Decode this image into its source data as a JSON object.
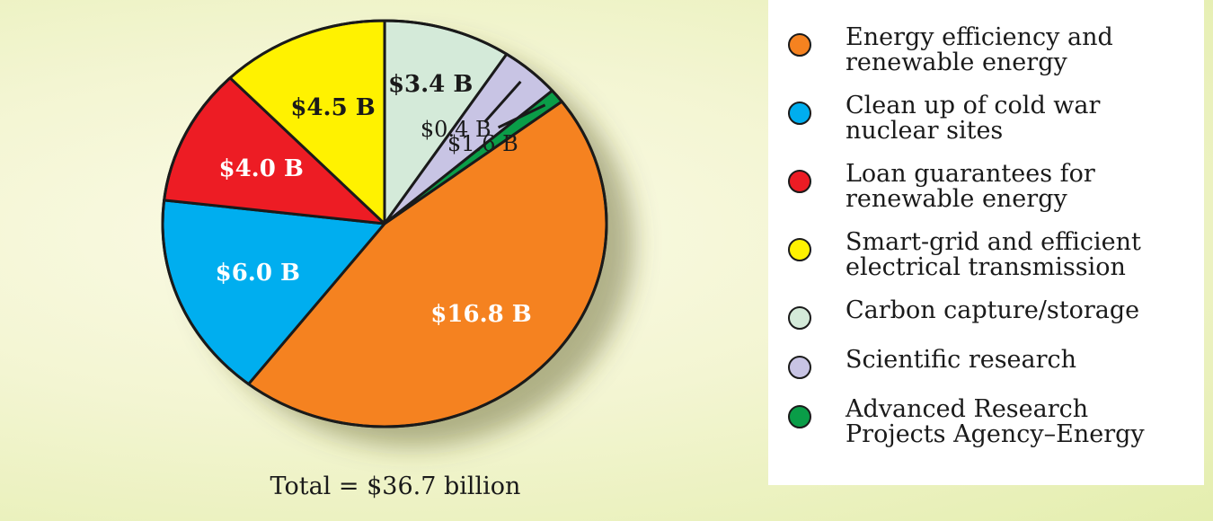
{
  "chart_data": {
    "type": "pie",
    "total_label": "Total = $36.7 billion",
    "slices": [
      {
        "category": "Energy efficiency and\nrenewable energy",
        "value": 16.8,
        "label": "$16.8 B",
        "color": "#f58220",
        "text_color": "#ffffff"
      },
      {
        "category": "Clean up of cold war\nnuclear sites",
        "value": 6.0,
        "label": "$6.0 B",
        "color": "#00aeef",
        "text_color": "#ffffff"
      },
      {
        "category": "Loan guarantees for\nrenewable energy",
        "value": 4.0,
        "label": "$4.0 B",
        "color": "#ed1c24",
        "text_color": "#ffffff"
      },
      {
        "category": "Smart-grid and efficient\nelectrical transmission",
        "value": 4.5,
        "label": "$4.5 B",
        "color": "#fff200",
        "text_color": "#1a1a1a"
      },
      {
        "category": "Carbon capture/storage",
        "value": 3.4,
        "label": "$3.4 B",
        "color": "#d4ead9",
        "text_color": "#1a1a1a"
      },
      {
        "category": "Scientific research",
        "value": 1.6,
        "label": "$1.6 B",
        "color": "#c8c4e4",
        "text_color": "#1a1a1a"
      },
      {
        "category": "Advanced Research\nProjects Agency–Energy",
        "value": 0.4,
        "label": "$0.4 B",
        "color": "#0a9d48",
        "text_color": "#1a1a1a"
      }
    ],
    "legend_position": "right"
  }
}
